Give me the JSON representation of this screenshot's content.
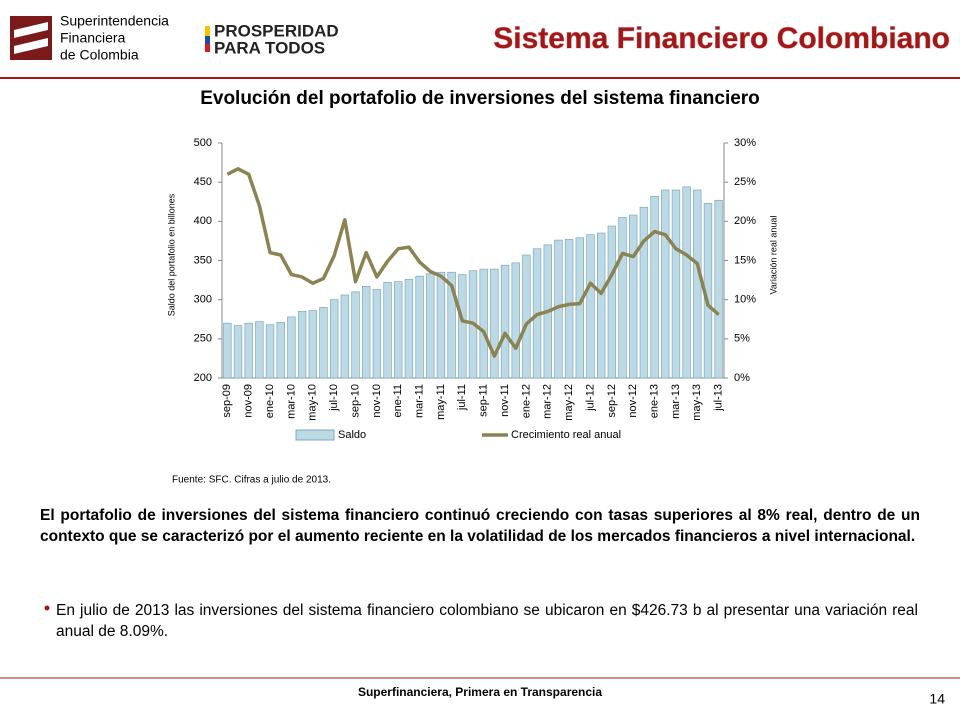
{
  "header": {
    "logo_lines": [
      "Superintendencia",
      "Financiera",
      "de Colombia"
    ],
    "slogan_lines": [
      "PROSPERIDAD",
      "PARA TODOS"
    ],
    "title": "Sistema Financiero Colombiano"
  },
  "chart_data": {
    "type": "bar_line",
    "title": "Evolución del portafolio de inversiones del sistema financiero",
    "categories": [
      "sep-09",
      null,
      "nov-09",
      null,
      "ene-10",
      null,
      "mar-10",
      null,
      "may-10",
      null,
      "jul-10",
      null,
      "sep-10",
      null,
      "nov-10",
      null,
      "ene-11",
      null,
      "mar-11",
      null,
      "may-11",
      null,
      "jul-11",
      null,
      "sep-11",
      null,
      "nov-11",
      null,
      "ene-12",
      null,
      "mar-12",
      null,
      "may-12",
      null,
      "jul-12",
      null,
      "sep-12",
      null,
      "nov-12",
      null,
      "ene-13",
      null,
      "mar-13",
      null,
      "may-13",
      null,
      "jul-13"
    ],
    "series": [
      {
        "name": "Saldo",
        "type": "bar",
        "color": "#bcd9e6",
        "values": [
          270,
          267,
          270,
          272,
          268,
          271,
          278,
          285,
          286,
          290,
          300,
          306,
          310,
          317,
          313,
          322,
          323,
          326,
          330,
          333,
          335,
          335,
          332,
          337,
          339,
          339,
          344,
          347,
          357,
          365,
          370,
          376,
          377,
          379,
          383,
          385,
          394,
          405,
          408,
          418,
          432,
          440,
          440,
          444,
          440,
          423,
          426.73
        ]
      },
      {
        "name": "Crecimiento real anual",
        "type": "line",
        "axis": "y2",
        "color": "#8b8352",
        "values": [
          26,
          26.7,
          26,
          22,
          16,
          15.7,
          13.2,
          12.9,
          12.1,
          12.7,
          15.6,
          20.2,
          12.3,
          16,
          12.9,
          14.9,
          16.5,
          16.7,
          14.8,
          13.6,
          13,
          11.8,
          7.3,
          7,
          5.9,
          2.8,
          5.7,
          3.8,
          6.9,
          8.1,
          8.5,
          9.1,
          9.4,
          9.5,
          12.1,
          10.8,
          13.2,
          15.9,
          15.5,
          17.5,
          18.7,
          18.3,
          16.5,
          15.7,
          14.6,
          9.3,
          8.09
        ]
      }
    ],
    "ylabel": "Saldo del portafolio en billones",
    "y2label": "Variación real anual",
    "ylim": [
      200,
      500
    ],
    "yticks": [
      200,
      250,
      300,
      350,
      400,
      450,
      500
    ],
    "y2lim": [
      0,
      30
    ],
    "y2ticks": [
      {
        "value": 0,
        "label": "0%"
      },
      {
        "value": 5,
        "label": "5%"
      },
      {
        "value": 10,
        "label": "10%"
      },
      {
        "value": 15,
        "label": "15%"
      },
      {
        "value": 20,
        "label": "20%"
      },
      {
        "value": 25,
        "label": "25%"
      },
      {
        "value": 30,
        "label": "30%"
      }
    ],
    "legend": "bottom",
    "source": "Fuente: SFC. Cifras a julio de 2013."
  },
  "body": {
    "paragraph": "El portafolio de inversiones del sistema financiero continuó creciendo con tasas superiores al 8% real, dentro de un contexto que se caracterizó por el aumento reciente en la volatilidad de los mercados financieros a nivel internacional.",
    "bullet": "En julio de 2013 las inversiones del sistema financiero colombiano se ubicaron en $426.73 b al presentar una variación real anual de 8.09%."
  },
  "footer": {
    "text": "Superfinanciera, Primera en Transparencia",
    "page": 14
  }
}
